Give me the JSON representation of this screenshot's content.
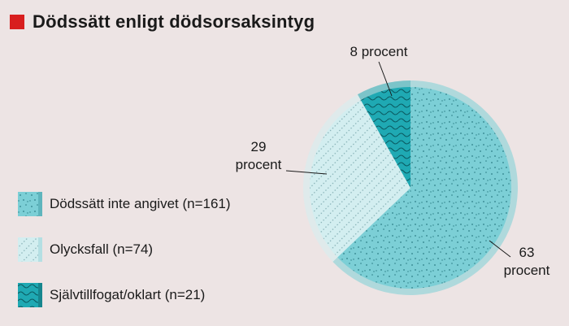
{
  "title": "Dödssätt enligt dödsorsaksintyg",
  "colors": {
    "title_marker": "#d81e1e",
    "background": "#ede4e4"
  },
  "chart_data": {
    "type": "pie",
    "title": "Dödssätt enligt dödsorsaksintyg",
    "start": "12 o'clock, clockwise",
    "slices": [
      {
        "label": "Dödssätt inte angivet (n=161)",
        "n": 161,
        "percent": 63,
        "percent_label": "63 procent",
        "color": "#7ccfd6",
        "pattern": "dots"
      },
      {
        "label": "Olycksfall (n=74)",
        "n": 74,
        "percent": 29,
        "percent_label": "29 procent",
        "color": "#d3eef0",
        "pattern": "dotted-diagonal"
      },
      {
        "label": "Självtillfogat/oklart (n=21)",
        "n": 21,
        "percent": 8,
        "percent_label": "8 procent",
        "color": "#1fa9b3",
        "pattern": "waves"
      }
    ]
  },
  "labels": {
    "pct_1": [
      "63",
      "procent"
    ],
    "pct_2": [
      "29",
      "procent"
    ],
    "pct_3": [
      "8 procent"
    ]
  }
}
